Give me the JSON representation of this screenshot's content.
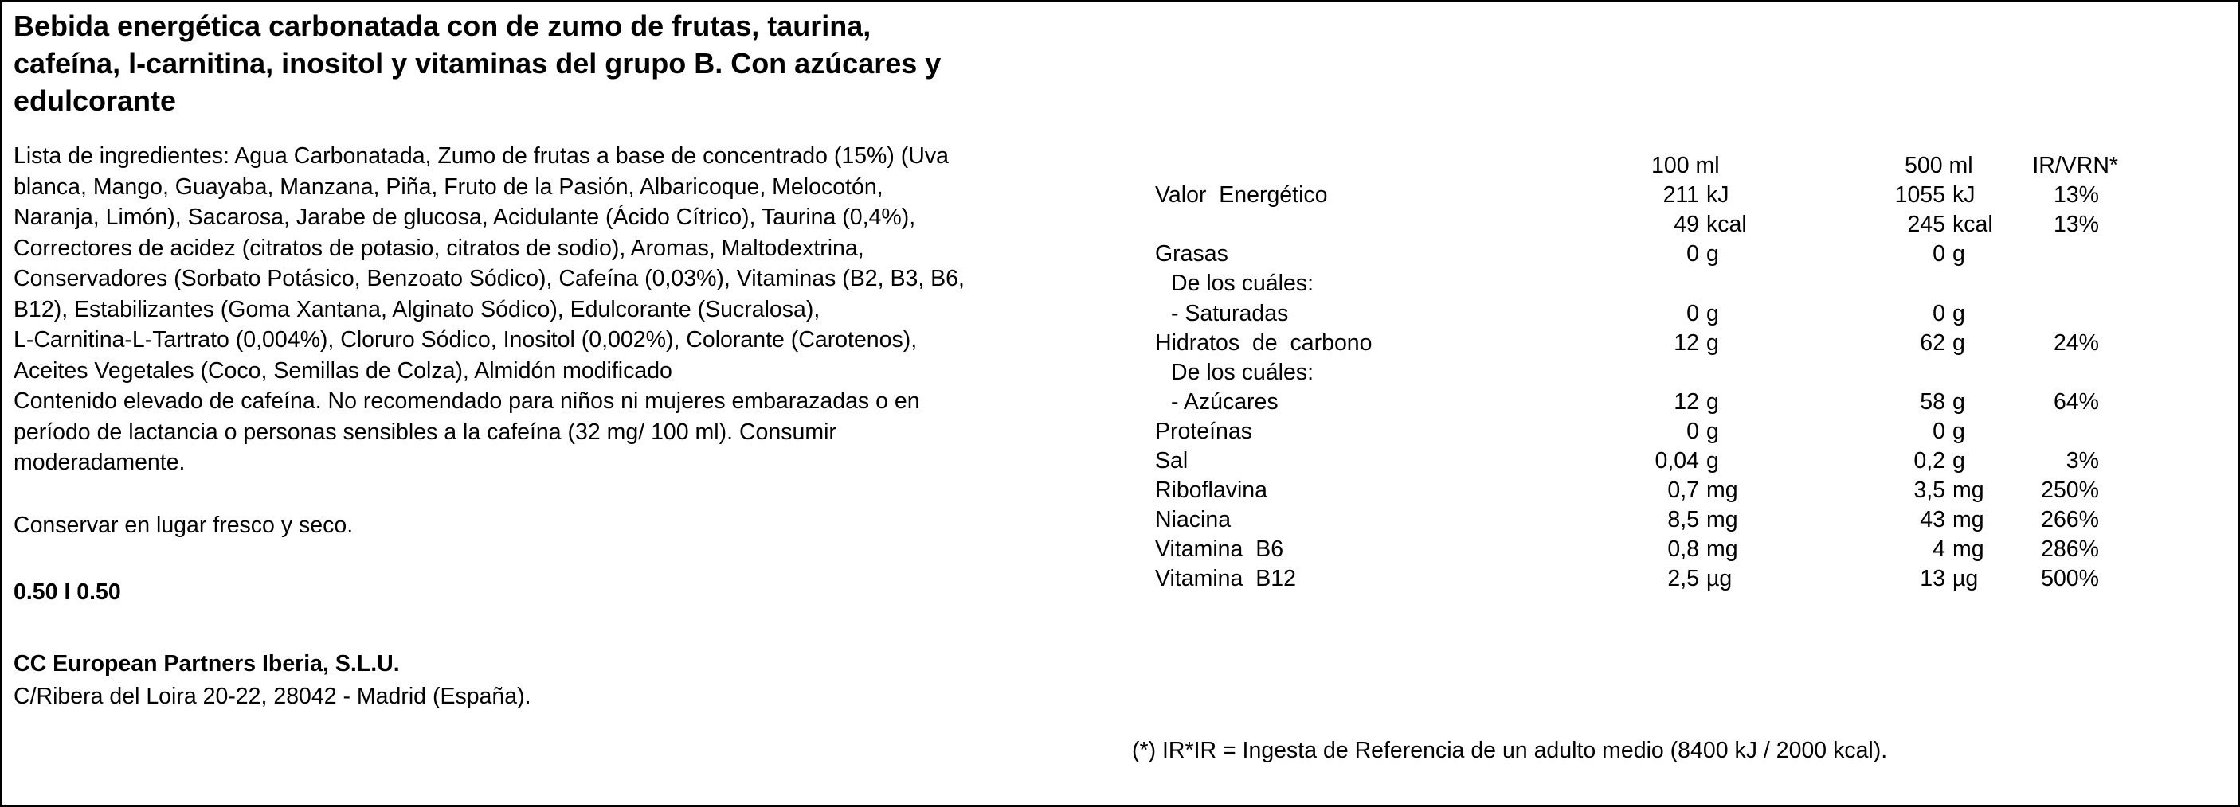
{
  "title": [
    "Bebida energética carbonatada con de zumo de frutas, taurina,",
    "cafeína, l-carnitina, inositol y vitaminas del grupo B. Con azúcares y",
    "edulcorante"
  ],
  "ingredients": [
    "Lista de ingredientes: Agua Carbonatada, Zumo de frutas a base de concentrado (15%) (Uva",
    "blanca, Mango, Guayaba, Manzana, Piña, Fruto de la Pasión, Albaricoque, Melocotón,",
    "Naranja, Limón), Sacarosa, Jarabe de glucosa, Acidulante (Ácido Cítrico), Taurina (0,4%),",
    "Correctores de acidez (citratos de potasio, citratos de sodio), Aromas, Maltodextrina,",
    "Conservadores (Sorbato Potásico, Benzoato Sódico), Cafeína (0,03%), Vitaminas (B2, B3, B6,",
    "B12), Estabilizantes (Goma Xantana, Alginato Sódico), Edulcorante (Sucralosa),",
    "L-Carnitina-L-Tartrato (0,004%), Cloruro Sódico, Inositol (0,002%), Colorante (Carotenos),",
    "Aceites Vegetales (Coco, Semillas de Colza), Almidón modificado"
  ],
  "warning": [
    "Contenido elevado de cafeína. No recomendado para niños ni mujeres embarazadas o en",
    "período de lactancia o personas sensibles a la cafeína (32 mg/ 100 ml). Consumir",
    "moderadamente."
  ],
  "storage": "Conservar en lugar fresco y seco.",
  "quantity": "0.50 l 0.50",
  "company": {
    "name": "CC European Partners Iberia, S.L.U.",
    "address": "C/Ribera del Loira 20-22, 28042 - Madrid (España)."
  },
  "nutrition": {
    "header": {
      "per_100": "100 ml",
      "per_500": "500 ml",
      "ir": "IR/VRN*"
    },
    "rows": [
      {
        "label": "Valor  Energético",
        "a": "211",
        "au": "kJ",
        "b": "1055",
        "bu": "kJ",
        "ir": "13%"
      },
      {
        "a": "49",
        "au": "kcal",
        "b": "245",
        "bu": "kcal",
        "ir": "13%"
      },
      {
        "label": "Grasas",
        "a": "0",
        "au": "g",
        "b": "0",
        "bu": "g"
      },
      {
        "label": "De los cuáles:"
      },
      {
        "label": "- Saturadas",
        "a": "0",
        "au": "g",
        "b": "0",
        "bu": "g"
      },
      {
        "label": "Hidratos  de  carbono",
        "a": "12",
        "au": "g",
        "b": "62",
        "bu": "g",
        "ir": "24%"
      },
      {
        "label": "De los cuáles:"
      },
      {
        "label": "- Azúcares",
        "a": "12",
        "au": "g",
        "b": "58",
        "bu": "g",
        "ir": "64%"
      },
      {
        "label": "Proteínas",
        "a": "0",
        "au": "g",
        "b": "0",
        "bu": "g"
      },
      {
        "label": "Sal",
        "a": "0,04",
        "au": "g",
        "b": "0,2",
        "bu": "g",
        "ir": "3%"
      },
      {
        "label": "Riboflavina",
        "a": "0,7",
        "au": "mg",
        "b": "3,5",
        "bu": "mg",
        "ir": "250%"
      },
      {
        "label": "Niacina",
        "a": "8,5",
        "au": "mg",
        "b": "43",
        "bu": "mg",
        "ir": "266%"
      },
      {
        "label": "Vitamina  B6",
        "a": "0,8",
        "au": "mg",
        "b": "4",
        "bu": "mg",
        "ir": "286%"
      },
      {
        "label": "Vitamina  B12",
        "a": "2,5",
        "au": "µg",
        "b": "13",
        "bu": "µg",
        "ir": "500%"
      }
    ]
  },
  "footnote": "(*) IR*IR = Ingesta de Referencia de un adulto medio (8400 kJ / 2000 kcal)."
}
